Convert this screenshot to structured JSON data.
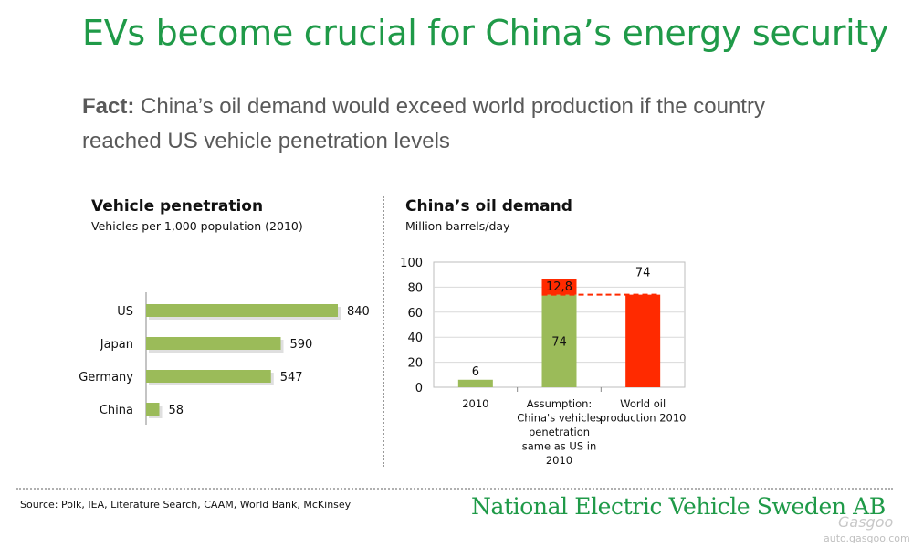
{
  "slide": {
    "title": "EVs become crucial for China’s energy security",
    "fact_label": "Fact:",
    "fact_text": " China’s oil demand would exceed world production if the country reached US vehicle penetration levels",
    "source": "Source: Polk, IEA, Literature Search, CAAM, World Bank, McKinsey",
    "brand": "National Electric Vehicle Sweden AB",
    "watermark_logo": "Gasgoo",
    "watermark_url": "auto.gasgoo.com"
  },
  "colors": {
    "green": "#9bbb59",
    "red": "#ff2a00",
    "brand_green": "#1f9a48"
  },
  "chart_data": [
    {
      "type": "bar",
      "orientation": "horizontal",
      "title": "Vehicle penetration",
      "subtitle": "Vehicles per 1,000 population (2010)",
      "categories": [
        "US",
        "Japan",
        "Germany",
        "China"
      ],
      "values": [
        840,
        590,
        547,
        58
      ],
      "data_labels": [
        "840",
        "590",
        "547",
        "58"
      ],
      "xlim": [
        0,
        840
      ],
      "grid": false
    },
    {
      "type": "bar",
      "orientation": "vertical",
      "stacked": true,
      "title": "China’s oil demand",
      "subtitle": "Million barrels/day",
      "categories": [
        "2010",
        "Assumption: China's vehicles penetration same as US in 2010",
        "World oil production 2010"
      ],
      "category_lines": [
        [
          "2010"
        ],
        [
          "Assumption:",
          "China's vehicles",
          "penetration",
          "same as US in",
          "2010"
        ],
        [
          "World oil",
          "production 2010"
        ]
      ],
      "series": [
        {
          "values": [
            6,
            74,
            0
          ],
          "color": "#9bbb59",
          "data_labels": [
            "6",
            "74",
            ""
          ]
        },
        {
          "values": [
            0,
            12.8,
            74
          ],
          "color": "#ff2a00",
          "data_labels": [
            "",
            "12,8",
            "74"
          ]
        }
      ],
      "reference_line": {
        "value": 74,
        "style": "dashed",
        "color": "#ff2a00"
      },
      "y_ticks": [
        0,
        20,
        40,
        60,
        80,
        100
      ],
      "ylim": [
        0,
        100
      ],
      "grid": true
    }
  ]
}
